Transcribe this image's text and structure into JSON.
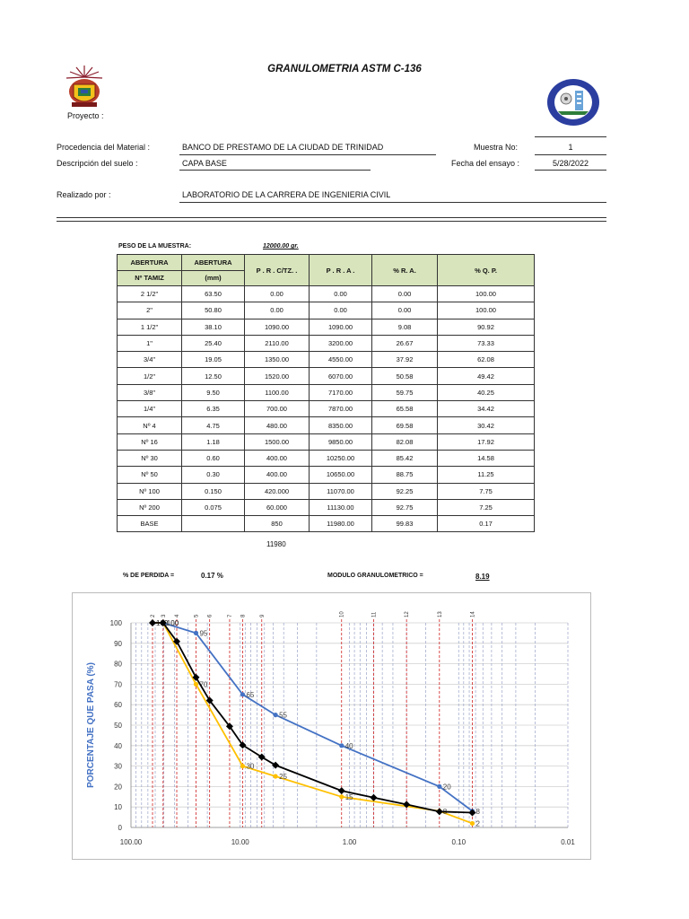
{
  "header": {
    "title": "GRANULOMETRIA ASTM C-136",
    "proyecto_label": "Proyecto :"
  },
  "info": {
    "procedencia_label": "Procedencia del Material :",
    "procedencia_value": "BANCO DE PRESTAMO DE LA CIUDAD DE TRINIDAD",
    "descripcion_label": "Descripción del suelo :",
    "descripcion_value": "CAPA BASE",
    "realizado_label": "Realizado por :",
    "realizado_value": "LABORATORIO DE LA CARRERA DE INGENIERIA CIVIL",
    "muestra_label": "Muestra    No:",
    "muestra_value": "1",
    "fecha_label": "Fecha  del  ensayo :",
    "fecha_value": "5/28/2022"
  },
  "sample": {
    "peso_label": "PESO DE LA MUESTRA:",
    "peso_value": "12000.00 gr."
  },
  "table": {
    "headers": {
      "abertura": "ABERTURA",
      "tamiz": "Nº  TAMIZ",
      "abertura_mm": "ABERTURA",
      "mm": "(mm)",
      "prc": "P . R . C/TZ. .",
      "pra": "P . R . A .",
      "ra": "%  R. A.",
      "qp": "% Q. P."
    },
    "rows": [
      {
        "tamiz": "2 1/2\"",
        "mm": "63.50",
        "prc": "0.00",
        "pra": "0.00",
        "ra": "0.00",
        "qp": "100.00"
      },
      {
        "tamiz": "2\"",
        "mm": "50.80",
        "prc": "0.00",
        "pra": "0.00",
        "ra": "0.00",
        "qp": "100.00"
      },
      {
        "tamiz": "1 1/2\"",
        "mm": "38.10",
        "prc": "1090.00",
        "pra": "1090.00",
        "ra": "9.08",
        "qp": "90.92"
      },
      {
        "tamiz": "1\"",
        "mm": "25.40",
        "prc": "2110.00",
        "pra": "3200.00",
        "ra": "26.67",
        "qp": "73.33"
      },
      {
        "tamiz": "3/4\"",
        "mm": "19.05",
        "prc": "1350.00",
        "pra": "4550.00",
        "ra": "37.92",
        "qp": "62.08"
      },
      {
        "tamiz": "1/2\"",
        "mm": "12.50",
        "prc": "1520.00",
        "pra": "6070.00",
        "ra": "50.58",
        "qp": "49.42"
      },
      {
        "tamiz": "3/8\"",
        "mm": "9.50",
        "prc": "1100.00",
        "pra": "7170.00",
        "ra": "59.75",
        "qp": "40.25"
      },
      {
        "tamiz": "1/4\"",
        "mm": "6.35",
        "prc": "700.00",
        "pra": "7870.00",
        "ra": "65.58",
        "qp": "34.42"
      },
      {
        "tamiz": "Nº 4",
        "mm": "4.75",
        "prc": "480.00",
        "pra": "8350.00",
        "ra": "69.58",
        "qp": "30.42"
      },
      {
        "tamiz": "Nº 16",
        "mm": "1.18",
        "prc": "1500.00",
        "pra": "9850.00",
        "ra": "82.08",
        "qp": "17.92"
      },
      {
        "tamiz": "Nº 30",
        "mm": "0.60",
        "prc": "400.00",
        "pra": "10250.00",
        "ra": "85.42",
        "qp": "14.58"
      },
      {
        "tamiz": "Nº 50",
        "mm": "0.30",
        "prc": "400.00",
        "pra": "10650.00",
        "ra": "88.75",
        "qp": "11.25"
      },
      {
        "tamiz": "Nº 100",
        "mm": "0.150",
        "prc": "420.000",
        "pra": "11070.00",
        "ra": "92.25",
        "qp": "7.75"
      },
      {
        "tamiz": "Nº 200",
        "mm": "0.075",
        "prc": "60.000",
        "pra": "11130.00",
        "ra": "92.75",
        "qp": "7.25"
      },
      {
        "tamiz": "BASE",
        "mm": "",
        "prc": "850",
        "pra": "11980.00",
        "ra": "99.83",
        "qp": "0.17"
      }
    ],
    "total": "11980"
  },
  "summary": {
    "perdida_label": "% DE PERDIDA =",
    "perdida_value": "0.17 %",
    "modulo_label": "MODULO GRANULOMETRICO =",
    "modulo_value": "8.19"
  },
  "chart_data": {
    "type": "line",
    "title": "",
    "xlabel": "",
    "ylabel": "PORCENTAJE QUE PASA (%)",
    "xscale": "log",
    "x_reversed": true,
    "xlim": [
      100,
      0.01
    ],
    "ylim": [
      0,
      100
    ],
    "x_ticks": [
      "100.00",
      "10.00",
      "1.00",
      "0.10",
      "0.01"
    ],
    "y_ticks": [
      "0",
      "10",
      "20",
      "30",
      "40",
      "50",
      "60",
      "70",
      "80",
      "90",
      "100"
    ],
    "grid": true,
    "legend": "none",
    "series": [
      {
        "color": "#000000",
        "marker": "diamond",
        "x": [
          63.5,
          50.8,
          38.1,
          25.4,
          19.05,
          12.5,
          9.5,
          6.35,
          4.75,
          1.18,
          0.6,
          0.3,
          0.15,
          0.075
        ],
        "y": [
          100,
          100,
          90.92,
          73.33,
          62.08,
          49.42,
          40.25,
          34.42,
          30.42,
          17.92,
          14.58,
          11.25,
          7.75,
          7.25
        ]
      },
      {
        "color": "#4472c4",
        "marker": "circle",
        "x": [
          63.5,
          50.8,
          25.4,
          9.5,
          4.75,
          1.18,
          0.15,
          0.075
        ],
        "y": [
          100,
          100,
          95,
          65,
          55,
          40,
          20,
          8
        ],
        "point_labels": [
          "100",
          "100",
          "95",
          "65",
          "55",
          "40",
          "20",
          "8"
        ]
      },
      {
        "color": "#ffc000",
        "marker": "circle",
        "x": [
          63.5,
          50.8,
          25.4,
          9.5,
          4.75,
          1.18,
          0.15,
          0.075
        ],
        "y": [
          100,
          100,
          70,
          30,
          25,
          15,
          8,
          2
        ],
        "point_labels": [
          "100",
          "100",
          "70",
          "30",
          "25",
          "15",
          "8",
          "2"
        ]
      }
    ],
    "red_lines": [
      {
        "label": "2",
        "x": 63.5
      },
      {
        "label": "3",
        "x": 50.8
      },
      {
        "label": "4",
        "x": 38.1
      },
      {
        "label": "5",
        "x": 25.4
      },
      {
        "label": "6",
        "x": 19.05
      },
      {
        "label": "7",
        "x": 12.5
      },
      {
        "label": "8",
        "x": 9.5
      },
      {
        "label": "9",
        "x": 6.35
      },
      {
        "label": "10",
        "x": 1.18
      },
      {
        "label": "11",
        "x": 0.6
      },
      {
        "label": "12",
        "x": 0.3
      },
      {
        "label": "13",
        "x": 0.15
      },
      {
        "label": "14",
        "x": 0.075
      }
    ]
  }
}
